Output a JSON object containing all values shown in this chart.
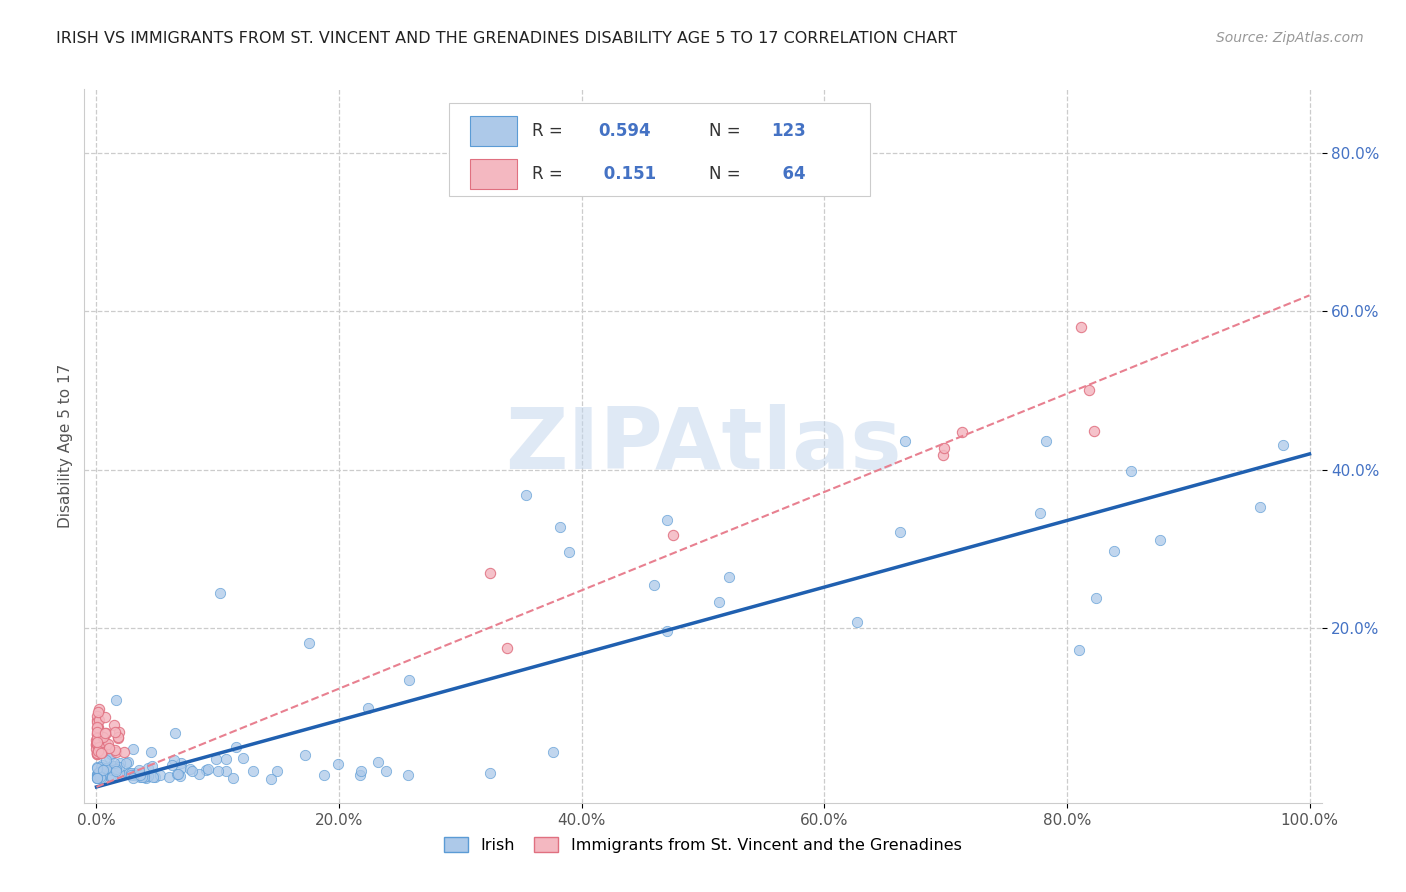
{
  "title": "IRISH VS IMMIGRANTS FROM ST. VINCENT AND THE GRENADINES DISABILITY AGE 5 TO 17 CORRELATION CHART",
  "source": "Source: ZipAtlas.com",
  "ylabel": "Disability Age 5 to 17",
  "xlim": [
    -0.01,
    1.01
  ],
  "ylim": [
    -0.02,
    0.88
  ],
  "xtick_labels": [
    "0.0%",
    "20.0%",
    "40.0%",
    "60.0%",
    "80.0%",
    "100.0%"
  ],
  "xtick_vals": [
    0.0,
    0.2,
    0.4,
    0.6,
    0.8,
    1.0
  ],
  "ytick_labels": [
    "20.0%",
    "40.0%",
    "60.0%",
    "80.0%"
  ],
  "ytick_vals": [
    0.2,
    0.4,
    0.6,
    0.8
  ],
  "irish_fill": "#adc9e9",
  "irish_edge": "#5b9bd5",
  "svg_fill": "#f4b8c1",
  "svg_edge": "#e07080",
  "trend_irish_color": "#2060b0",
  "trend_svg_color": "#e88090",
  "R_irish": 0.594,
  "N_irish": 123,
  "R_svg": 0.151,
  "N_svg": 64,
  "legend_irish": "Irish",
  "legend_svg": "Immigrants from St. Vincent and the Grenadines",
  "watermark": "ZIPAtlas",
  "title_color": "#222222",
  "source_color": "#999999",
  "ylabel_color": "#555555",
  "ytick_color": "#4472c4",
  "xtick_color": "#555555",
  "grid_color": "#cccccc",
  "legend_r_color": "#4472c4",
  "legend_label_color": "#333333",
  "irish_trend_x0": 0.0,
  "irish_trend_y0": 0.0,
  "irish_trend_x1": 1.0,
  "irish_trend_y1": 0.42,
  "svg_trend_x0": 0.0,
  "svg_trend_y0": 0.0,
  "svg_trend_x1": 1.0,
  "svg_trend_y1": 0.62
}
